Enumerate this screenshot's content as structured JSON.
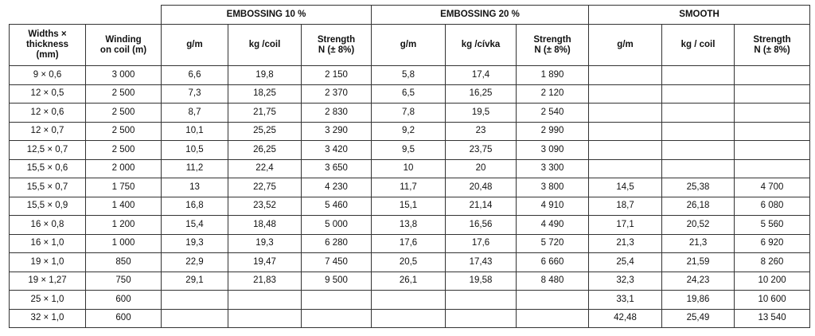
{
  "groups": {
    "emboss10": "EMBOSSING 10 %",
    "emboss20": "EMBOSSING 20 %",
    "smooth": "SMOOTH"
  },
  "headers": {
    "size": "Widths ×\nthickness\n(mm)",
    "winding": "Winding\non coil (m)",
    "e10_gm": "g/m",
    "e10_kg": "kg /coil",
    "e10_strength": "Strength\nN (± 8%)",
    "e20_gm": "g/m",
    "e20_kg": "kg /cívka",
    "e20_strength": "Strength\nN (± 8%)",
    "s_gm": "g/m",
    "s_kg": "kg / coil",
    "s_strength": "Strength\nN (± 8%)"
  },
  "rows": [
    [
      "9 × 0,6",
      "3 000",
      "6,6",
      "19,8",
      "2 150",
      "5,8",
      "17,4",
      "1 890",
      "",
      "",
      ""
    ],
    [
      "12 × 0,5",
      "2 500",
      "7,3",
      "18,25",
      "2 370",
      "6,5",
      "16,25",
      "2 120",
      "",
      "",
      ""
    ],
    [
      "12 × 0,6",
      "2 500",
      "8,7",
      "21,75",
      "2 830",
      "7,8",
      "19,5",
      "2 540",
      "",
      "",
      ""
    ],
    [
      "12 × 0,7",
      "2 500",
      "10,1",
      "25,25",
      "3 290",
      "9,2",
      "23",
      "2 990",
      "",
      "",
      ""
    ],
    [
      "12,5 × 0,7",
      "2 500",
      "10,5",
      "26,25",
      "3 420",
      "9,5",
      "23,75",
      "3 090",
      "",
      "",
      ""
    ],
    [
      "15,5 × 0,6",
      "2 000",
      "11,2",
      "22,4",
      "3 650",
      "10",
      "20",
      "3 300",
      "",
      "",
      ""
    ],
    [
      "15,5 × 0,7",
      "1 750",
      "13",
      "22,75",
      "4 230",
      "11,7",
      "20,48",
      "3 800",
      "14,5",
      "25,38",
      "4 700"
    ],
    [
      "15,5 × 0,9",
      "1 400",
      "16,8",
      "23,52",
      "5 460",
      "15,1",
      "21,14",
      "4 910",
      "18,7",
      "26,18",
      "6 080"
    ],
    [
      "16 × 0,8",
      "1 200",
      "15,4",
      "18,48",
      "5 000",
      "13,8",
      "16,56",
      "4 490",
      "17,1",
      "20,52",
      "5 560"
    ],
    [
      "16 × 1,0",
      "1 000",
      "19,3",
      "19,3",
      "6 280",
      "17,6",
      "17,6",
      "5 720",
      "21,3",
      "21,3",
      "6 920"
    ],
    [
      "19 × 1,0",
      "850",
      "22,9",
      "19,47",
      "7 450",
      "20,5",
      "17,43",
      "6 660",
      "25,4",
      "21,59",
      "8 260"
    ],
    [
      "19 × 1,27",
      "750",
      "29,1",
      "21,83",
      "9 500",
      "26,1",
      "19,58",
      "8 480",
      "32,3",
      "24,23",
      "10 200"
    ],
    [
      "25 × 1,0",
      "600",
      "",
      "",
      "",
      "",
      "",
      "",
      "33,1",
      "19,86",
      "10 600"
    ],
    [
      "32 × 1,0",
      "600",
      "",
      "",
      "",
      "",
      "",
      "",
      "42,48",
      "25,49",
      "13 540"
    ]
  ]
}
